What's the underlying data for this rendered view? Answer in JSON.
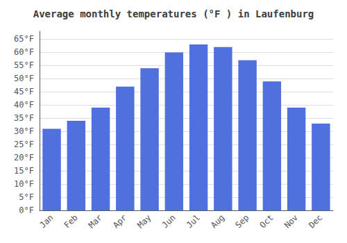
{
  "chart_data": {
    "type": "bar",
    "title": "Average monthly temperatures (°F ) in Laufenburg",
    "categories": [
      "Jan",
      "Feb",
      "Mar",
      "Apr",
      "May",
      "Jun",
      "Jul",
      "Aug",
      "Sep",
      "Oct",
      "Nov",
      "Dec"
    ],
    "values": [
      31,
      34,
      39,
      47,
      54,
      60,
      63,
      62,
      57,
      49,
      39,
      33
    ],
    "ylim": [
      0,
      68
    ],
    "yticks": [
      {
        "value": 0,
        "label": "0°F"
      },
      {
        "value": 5,
        "label": "5°F"
      },
      {
        "value": 10,
        "label": "10°F"
      },
      {
        "value": 15,
        "label": "15°F"
      },
      {
        "value": 20,
        "label": "20°F"
      },
      {
        "value": 25,
        "label": "25°F"
      },
      {
        "value": 30,
        "label": "30°F"
      },
      {
        "value": 35,
        "label": "35°F"
      },
      {
        "value": 40,
        "label": "40°F"
      },
      {
        "value": 45,
        "label": "45°F"
      },
      {
        "value": 50,
        "label": "50°F"
      },
      {
        "value": 55,
        "label": "55°F"
      },
      {
        "value": 60,
        "label": "60°F"
      },
      {
        "value": 65,
        "label": "65°F"
      }
    ],
    "grid": true
  }
}
